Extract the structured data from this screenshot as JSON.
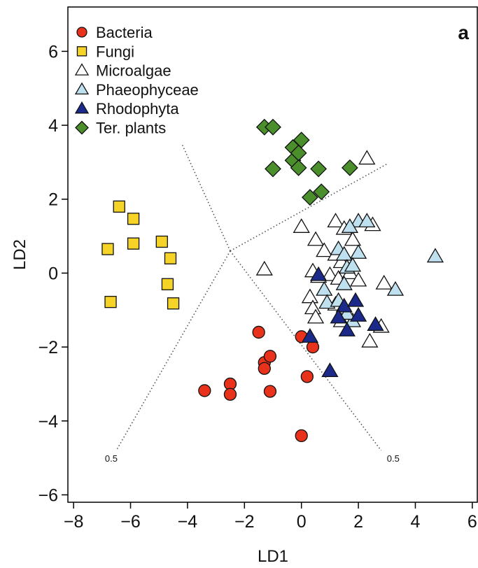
{
  "chart_data": {
    "type": "scatter",
    "title": "",
    "panel_label": "a",
    "xlabel": "LD1",
    "ylabel": "LD2",
    "xlim": [
      -8.2,
      6.2
    ],
    "ylim": [
      -6.2,
      7.2
    ],
    "xticks": [
      -8,
      -6,
      -4,
      -2,
      0,
      2,
      4,
      6
    ],
    "yticks": [
      -6,
      -4,
      -2,
      0,
      2,
      4,
      6
    ],
    "xtick_labels": [
      "−8",
      "−6",
      "−4",
      "−2",
      "0",
      "2",
      "4",
      "6"
    ],
    "ytick_labels": [
      "−6",
      "−4",
      "−2",
      "0",
      "2",
      "4",
      "6"
    ],
    "grid": false,
    "legend_position": "top-left",
    "series": [
      {
        "name": "Bacteria",
        "marker": "circle",
        "color": "#e8321c",
        "points": [
          [
            -3.4,
            -3.18
          ],
          [
            -2.5,
            -3.0
          ],
          [
            -2.5,
            -3.28
          ],
          [
            -1.5,
            -1.6
          ],
          [
            -1.3,
            -2.42
          ],
          [
            -1.3,
            -2.58
          ],
          [
            -1.1,
            -2.25
          ],
          [
            -1.1,
            -3.2
          ],
          [
            0.0,
            -1.72
          ],
          [
            0.2,
            -2.8
          ],
          [
            0.4,
            -2.0
          ],
          [
            0.0,
            -4.4
          ]
        ]
      },
      {
        "name": "Fungi",
        "marker": "square",
        "color": "#f5d327",
        "points": [
          [
            -6.4,
            1.8
          ],
          [
            -5.9,
            1.47
          ],
          [
            -5.9,
            0.8
          ],
          [
            -4.9,
            0.85
          ],
          [
            -4.6,
            0.4
          ],
          [
            -6.8,
            0.65
          ],
          [
            -4.7,
            -0.3
          ],
          [
            -4.5,
            -0.82
          ],
          [
            -6.7,
            -0.78
          ]
        ]
      },
      {
        "name": "Microalgae",
        "marker": "triangle",
        "color": "#ffffff",
        "points": [
          [
            -1.3,
            0.1
          ],
          [
            0.0,
            1.25
          ],
          [
            2.3,
            3.1
          ],
          [
            0.5,
            0.9
          ],
          [
            1.2,
            1.4
          ],
          [
            1.5,
            1.2
          ],
          [
            1.8,
            0.9
          ],
          [
            0.8,
            0.6
          ],
          [
            1.2,
            0.5
          ],
          [
            1.4,
            0.3
          ],
          [
            0.4,
            0.05
          ],
          [
            0.6,
            -0.1
          ],
          [
            1.0,
            -0.05
          ],
          [
            1.3,
            -0.15
          ],
          [
            1.7,
            0.0
          ],
          [
            2.0,
            -0.2
          ],
          [
            2.5,
            1.3
          ],
          [
            0.3,
            -0.65
          ],
          [
            0.4,
            -0.95
          ],
          [
            0.5,
            -1.2
          ],
          [
            1.2,
            -0.85
          ],
          [
            1.4,
            -1.3
          ],
          [
            2.4,
            -1.85
          ],
          [
            2.9,
            -0.28
          ],
          [
            2.8,
            -1.45
          ]
        ]
      },
      {
        "name": "Phaeophyceae",
        "marker": "triangle",
        "color": "#bfe0ee",
        "points": [
          [
            2.0,
            1.4
          ],
          [
            2.3,
            1.4
          ],
          [
            1.7,
            1.25
          ],
          [
            1.3,
            0.65
          ],
          [
            1.5,
            0.5
          ],
          [
            1.6,
            0.15
          ],
          [
            2.0,
            0.55
          ],
          [
            1.8,
            0.2
          ],
          [
            0.8,
            -0.45
          ],
          [
            1.5,
            -0.3
          ],
          [
            4.7,
            0.45
          ],
          [
            3.3,
            -0.45
          ],
          [
            0.9,
            -0.8
          ],
          [
            1.3,
            -0.75
          ],
          [
            1.8,
            -1.3
          ],
          [
            1.6,
            -1.1
          ]
        ]
      },
      {
        "name": "Rhodophyta",
        "marker": "triangle",
        "color": "#1b2a8a",
        "points": [
          [
            0.6,
            -0.05
          ],
          [
            1.5,
            -0.9
          ],
          [
            1.9,
            -0.75
          ],
          [
            1.3,
            -1.2
          ],
          [
            2.0,
            -1.15
          ],
          [
            1.6,
            -1.55
          ],
          [
            2.6,
            -1.4
          ],
          [
            0.3,
            -1.72
          ],
          [
            1.0,
            -2.65
          ]
        ]
      },
      {
        "name": "Ter. plants",
        "marker": "diamond",
        "color": "#4b8e2c",
        "points": [
          [
            -1.3,
            3.95
          ],
          [
            -1.0,
            3.95
          ],
          [
            0.0,
            3.6
          ],
          [
            -0.3,
            3.4
          ],
          [
            -0.3,
            3.05
          ],
          [
            -0.1,
            3.25
          ],
          [
            -1.0,
            2.82
          ],
          [
            -0.1,
            2.85
          ],
          [
            0.6,
            2.82
          ],
          [
            1.7,
            2.85
          ],
          [
            0.7,
            2.2
          ],
          [
            0.3,
            2.05
          ]
        ]
      }
    ],
    "annotations": [
      {
        "text": "0.5",
        "x": -6.9,
        "y": -5.1
      },
      {
        "text": "0.5",
        "x": 3.0,
        "y": -5.1
      }
    ],
    "discriminant_lines": [
      {
        "from": [
          -2.5,
          0.6
        ],
        "to": [
          -4.2,
          3.5
        ]
      },
      {
        "from": [
          -2.5,
          0.6
        ],
        "to": [
          3.0,
          2.95
        ]
      },
      {
        "from": [
          -2.5,
          0.6
        ],
        "to": [
          -6.5,
          -4.8
        ]
      },
      {
        "from": [
          -2.5,
          0.6
        ],
        "to": [
          2.8,
          -4.8
        ]
      }
    ]
  }
}
